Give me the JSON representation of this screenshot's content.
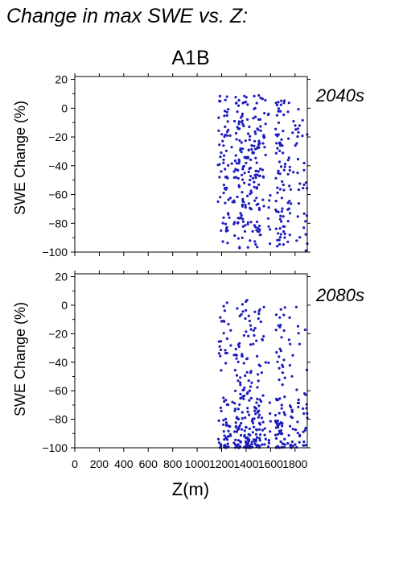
{
  "title": "Change in max SWE vs. Z:",
  "scenario": "A1B",
  "xlabel": "Z(m)",
  "colors": {
    "points": "#1c1cbc",
    "period_label": "#2a2ab0",
    "axis": "#000000"
  },
  "chart_data": [
    {
      "type": "scatter",
      "period": "2040s",
      "ylabel": "SWE Change (%)",
      "xlim": [
        0,
        1900
      ],
      "ylim": [
        -100,
        22
      ],
      "x_ticks": [
        0,
        200,
        400,
        600,
        800,
        1000,
        1200,
        1400,
        1600,
        1800
      ],
      "y_ticks": [
        -100,
        -80,
        -60,
        -40,
        -20,
        0,
        20
      ],
      "y_tick_labels": [
        "−100",
        "−80",
        "−60",
        "−40",
        "−20",
        "0",
        "20"
      ],
      "grid": false,
      "point_clusters": [
        {
          "x_range": [
            1170,
            1210
          ],
          "y_range": [
            -97,
            9
          ],
          "density": "medium"
        },
        {
          "x_range": [
            1210,
            1260
          ],
          "y_range": [
            -95,
            8
          ],
          "density": "high"
        },
        {
          "x_range": [
            1260,
            1290
          ],
          "y_range": [
            -88,
            6
          ],
          "density": "low"
        },
        {
          "x_range": [
            1300,
            1400
          ],
          "y_range": [
            -98,
            9
          ],
          "density": "high"
        },
        {
          "x_range": [
            1400,
            1520
          ],
          "y_range": [
            -98,
            9
          ],
          "density": "high"
        },
        {
          "x_range": [
            1520,
            1560
          ],
          "y_range": [
            -90,
            8
          ],
          "density": "medium"
        },
        {
          "x_range": [
            1580,
            1600
          ],
          "y_range": [
            -96,
            7
          ],
          "density": "medium"
        },
        {
          "x_range": [
            1640,
            1720
          ],
          "y_range": [
            -96,
            8
          ],
          "density": "high"
        },
        {
          "x_range": [
            1740,
            1790
          ],
          "y_range": [
            -96,
            6
          ],
          "density": "medium"
        },
        {
          "x_range": [
            1800,
            1840
          ],
          "y_range": [
            -96,
            7
          ],
          "density": "medium"
        },
        {
          "x_range": [
            1860,
            1900
          ],
          "y_range": [
            -100,
            8
          ],
          "density": "medium"
        }
      ]
    },
    {
      "type": "scatter",
      "period": "2080s",
      "ylabel": "SWE Change (%)",
      "xlim": [
        0,
        1900
      ],
      "ylim": [
        -100,
        22
      ],
      "x_ticks": [
        0,
        200,
        400,
        600,
        800,
        1000,
        1200,
        1400,
        1600,
        1800
      ],
      "x_tick_labels": [
        "0",
        "200",
        "400",
        "600",
        "800",
        "1000",
        "1200",
        "1400",
        "1600",
        "1800"
      ],
      "y_ticks": [
        -100,
        -80,
        -60,
        -40,
        -20,
        0,
        20
      ],
      "y_tick_labels": [
        "−100",
        "−80",
        "−60",
        "−40",
        "−20",
        "0",
        "20"
      ],
      "grid": false,
      "point_clusters": [
        {
          "x_range": [
            1170,
            1210
          ],
          "y_range": [
            -100,
            1
          ],
          "density": "medium"
        },
        {
          "x_range": [
            1210,
            1260
          ],
          "y_range": [
            -100,
            2
          ],
          "density": "high"
        },
        {
          "x_range": [
            1260,
            1290
          ],
          "y_range": [
            -100,
            -10
          ],
          "density": "low"
        },
        {
          "x_range": [
            1300,
            1400
          ],
          "y_range": [
            -100,
            4
          ],
          "density": "high"
        },
        {
          "x_range": [
            1400,
            1520
          ],
          "y_range": [
            -100,
            5
          ],
          "density": "high"
        },
        {
          "x_range": [
            1520,
            1560
          ],
          "y_range": [
            -100,
            2
          ],
          "density": "medium"
        },
        {
          "x_range": [
            1580,
            1600
          ],
          "y_range": [
            -100,
            -5
          ],
          "density": "medium"
        },
        {
          "x_range": [
            1640,
            1720
          ],
          "y_range": [
            -100,
            0
          ],
          "density": "high"
        },
        {
          "x_range": [
            1740,
            1790
          ],
          "y_range": [
            -100,
            -5
          ],
          "density": "medium"
        },
        {
          "x_range": [
            1800,
            1840
          ],
          "y_range": [
            -100,
            0
          ],
          "density": "medium"
        },
        {
          "x_range": [
            1860,
            1900
          ],
          "y_range": [
            -100,
            2
          ],
          "density": "medium"
        }
      ]
    }
  ]
}
